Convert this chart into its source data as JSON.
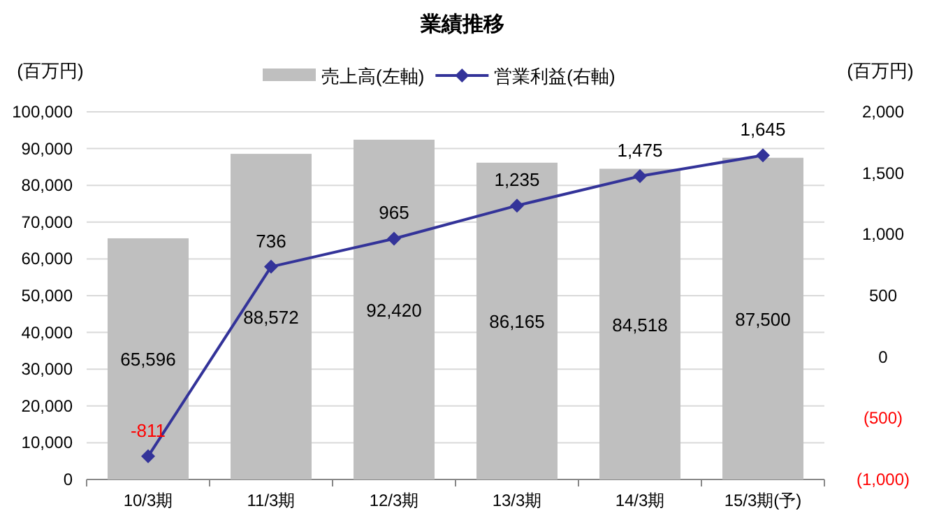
{
  "chart_data": {
    "type": "bar",
    "title": "業績推移",
    "ylabel": "(百万円)",
    "y2label": "(百万円)",
    "categories": [
      "10/3期",
      "11/3期",
      "12/3期",
      "13/3期",
      "14/3期",
      "15/3期(予)"
    ],
    "series": [
      {
        "name": "売上高(左軸)",
        "color": "#bfbfbf",
        "values": [
          65596,
          88572,
          92420,
          86165,
          84518,
          87500
        ],
        "value_labels": [
          "65,596",
          "88,572",
          "92,420",
          "86,165",
          "84,518",
          "87,500"
        ]
      },
      {
        "name": "営業利益(右軸)",
        "type": "line",
        "axis": "y2",
        "color": "#333399",
        "marker": "diamond",
        "values": [
          -811,
          736,
          965,
          1235,
          1475,
          1645
        ],
        "value_labels": [
          "-811",
          "736",
          "965",
          "1,235",
          "1,475",
          "1,645"
        ]
      }
    ],
    "ylim": [
      0,
      100000
    ],
    "yticks": [
      0,
      {
        "value": 10000,
        "label": "10,000"
      },
      {
        "value": 20000,
        "label": "20,000"
      },
      {
        "value": 30000,
        "label": "30,000"
      },
      {
        "value": 40000,
        "label": "40,000"
      },
      {
        "value": 50000,
        "label": "50,000"
      },
      {
        "value": 60000,
        "label": "60,000"
      },
      {
        "value": 70000,
        "label": "70,000"
      },
      {
        "value": 80000,
        "label": "80,000"
      },
      {
        "value": 90000,
        "label": "90,000"
      },
      {
        "value": 100000,
        "label": "100,000"
      }
    ],
    "y2lim": [
      -1000,
      2000
    ],
    "y2ticks": [
      {
        "value": -1000,
        "label": "(1,000)"
      },
      {
        "value": -500,
        "label": "(500)"
      },
      0,
      500,
      {
        "value": 1000,
        "label": "1,000"
      },
      {
        "value": 1500,
        "label": "1,500"
      },
      {
        "value": 2000,
        "label": "2,000"
      }
    ],
    "grid": "y",
    "legend": "top"
  }
}
